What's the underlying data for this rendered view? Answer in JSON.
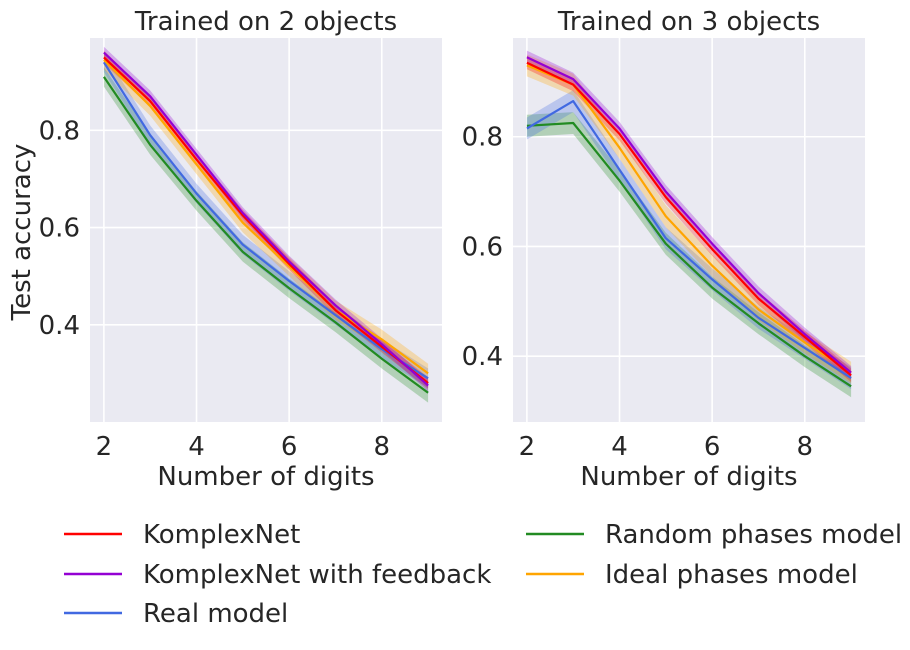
{
  "legend": [
    {
      "name": "KomplexNet",
      "color": "#ff0000"
    },
    {
      "name": "KomplexNet with feedback",
      "color": "#9400d3"
    },
    {
      "name": "Real model",
      "color": "#4169e1"
    },
    {
      "name": "Random phases model",
      "color": "#228b22"
    },
    {
      "name": "Ideal phases model",
      "color": "#ffa500"
    }
  ],
  "chart_data": [
    {
      "type": "line",
      "title": "Trained on 2 objects",
      "xlabel": "Number of digits",
      "ylabel": "Test accuracy",
      "xlim": [
        1.7,
        9.3
      ],
      "ylim": [
        0.2,
        0.99
      ],
      "xticks": [
        2,
        4,
        6,
        8
      ],
      "xtick_labels": [
        "2",
        "4",
        "6",
        "8"
      ],
      "yticks": [
        0.4,
        0.6,
        0.8
      ],
      "ytick_labels": [
        "0.4",
        "0.6",
        "0.8"
      ],
      "x": [
        2,
        3,
        4,
        5,
        6,
        7,
        8,
        9
      ],
      "series": [
        {
          "name": "Random phases model",
          "color": "#228b22",
          "values": [
            0.91,
            0.77,
            0.655,
            0.55,
            0.475,
            0.405,
            0.33,
            0.26
          ],
          "band": 0.02
        },
        {
          "name": "Real model",
          "color": "#4169e1",
          "values": [
            0.94,
            0.79,
            0.67,
            0.565,
            0.49,
            0.42,
            0.35,
            0.29
          ],
          "band": 0.02
        },
        {
          "name": "Ideal phases model",
          "color": "#ffa500",
          "values": [
            0.945,
            0.85,
            0.73,
            0.61,
            0.52,
            0.43,
            0.37,
            0.3
          ],
          "band": 0.02
        },
        {
          "name": "KomplexNet",
          "color": "#ff0000",
          "values": [
            0.95,
            0.86,
            0.74,
            0.625,
            0.525,
            0.43,
            0.355,
            0.28
          ],
          "band": 0.012
        },
        {
          "name": "KomplexNet with feedback",
          "color": "#9400d3",
          "values": [
            0.96,
            0.87,
            0.75,
            0.63,
            0.53,
            0.44,
            0.36,
            0.275
          ],
          "band": 0.012
        }
      ]
    },
    {
      "type": "line",
      "title": "Trained on 3 objects",
      "xlabel": "Number of digits",
      "ylabel": "",
      "xlim": [
        1.7,
        9.3
      ],
      "ylim": [
        0.28,
        0.98
      ],
      "xticks": [
        2,
        4,
        6,
        8
      ],
      "xtick_labels": [
        "2",
        "4",
        "6",
        "8"
      ],
      "yticks": [
        0.4,
        0.6,
        0.8
      ],
      "ytick_labels": [
        "0.4",
        "0.6",
        "0.8"
      ],
      "x": [
        2,
        3,
        4,
        5,
        6,
        7,
        8,
        9
      ],
      "series": [
        {
          "name": "Random phases model",
          "color": "#228b22",
          "values": [
            0.82,
            0.825,
            0.72,
            0.605,
            0.525,
            0.46,
            0.4,
            0.345
          ],
          "band": 0.02
        },
        {
          "name": "Real model",
          "color": "#4169e1",
          "values": [
            0.815,
            0.865,
            0.74,
            0.615,
            0.54,
            0.47,
            0.415,
            0.36
          ],
          "band": 0.02
        },
        {
          "name": "Ideal phases model",
          "color": "#ffa500",
          "values": [
            0.93,
            0.895,
            0.78,
            0.655,
            0.565,
            0.485,
            0.425,
            0.37
          ],
          "band": 0.02
        },
        {
          "name": "KomplexNet",
          "color": "#ff0000",
          "values": [
            0.935,
            0.895,
            0.805,
            0.69,
            0.595,
            0.505,
            0.435,
            0.365
          ],
          "band": 0.012
        },
        {
          "name": "KomplexNet with feedback",
          "color": "#9400d3",
          "values": [
            0.945,
            0.905,
            0.815,
            0.7,
            0.605,
            0.515,
            0.44,
            0.37
          ],
          "band": 0.012
        }
      ]
    }
  ]
}
